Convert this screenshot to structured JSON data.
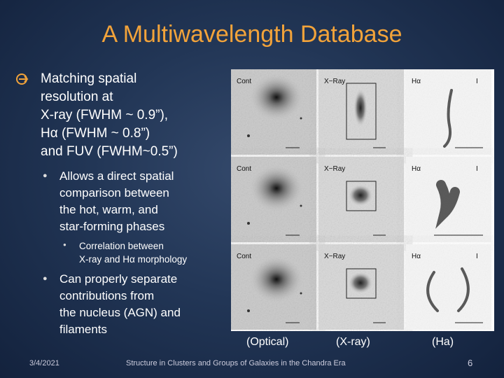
{
  "title": "A Multiwavelength Database",
  "bullets": [
    {
      "lines": [
        "Matching spatial",
        "resolution at",
        "X-ray (FWHM ~ 0.9”),",
        "Hα (FWHM ~ 0.8”)",
        "and FUV (FWHM~0.5”)"
      ]
    },
    {
      "lines": [
        "Allows a direct spatial",
        "comparison between",
        "the hot, warm, and",
        "star-forming phases"
      ]
    },
    {
      "lines": [
        "Correlation between",
        "X-ray and Hα morphology"
      ]
    },
    {
      "lines": [
        "Can properly separate",
        "contributions from",
        "the nucleus (AGN) and",
        "filaments"
      ]
    }
  ],
  "grid": {
    "rows": [
      {
        "cells": [
          {
            "label": "Cont"
          },
          {
            "label": "X−Ray"
          },
          {
            "label": "Hα",
            "marker": "I"
          }
        ]
      },
      {
        "cells": [
          {
            "label": "Cont"
          },
          {
            "label": "X−Ray"
          },
          {
            "label": "Hα",
            "marker": "I"
          }
        ]
      },
      {
        "cells": [
          {
            "label": "Cont"
          },
          {
            "label": "X−Ray"
          },
          {
            "label": "Hα",
            "marker": "I"
          }
        ]
      }
    ]
  },
  "captions": [
    "(Optical)",
    "(X-ray)",
    "(Ha)"
  ],
  "footer": {
    "date": "3/4/2021",
    "text": "Structure in Clusters and Groups of Galaxies in the Chandra Era",
    "page": "6"
  }
}
